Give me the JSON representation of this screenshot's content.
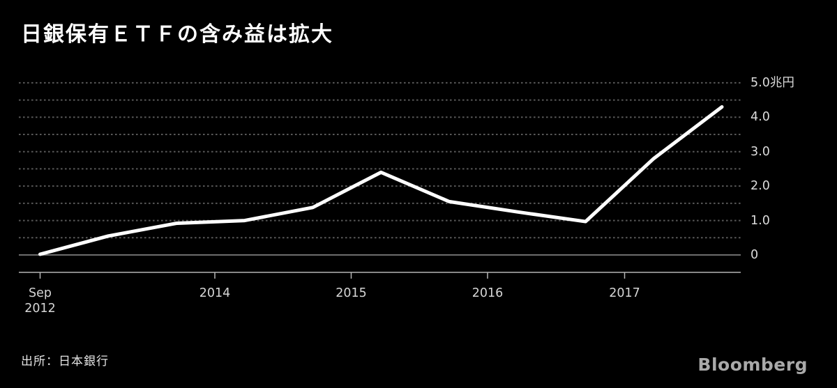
{
  "chart_data": {
    "type": "line",
    "title": "日銀保有ＥＴＦの含み益は拡大",
    "unit": "兆円",
    "x": [
      "Sep 2012",
      "Mar 2013",
      "Sep 2013",
      "Mar 2014",
      "Sep 2014",
      "Mar 2015",
      "Sep 2015",
      "Mar 2016",
      "Sep 2016",
      "Mar 2017",
      "Sep 2017"
    ],
    "values": [
      0.02,
      0.55,
      0.92,
      1.0,
      1.38,
      2.4,
      1.55,
      1.25,
      0.97,
      2.8,
      4.3
    ],
    "ylim": [
      -0.5,
      5.0
    ],
    "y_ticks": [
      {
        "value": 5.0,
        "label": "5.0兆円"
      },
      {
        "value": 4.0,
        "label": "4.0"
      },
      {
        "value": 3.0,
        "label": "3.0"
      },
      {
        "value": 2.0,
        "label": "2.0"
      },
      {
        "value": 1.0,
        "label": "1.0"
      },
      {
        "value": 0.0,
        "label": "0"
      }
    ],
    "x_axis_ticks": [
      {
        "label": "Sep\n2012"
      },
      {
        "label": "2014"
      },
      {
        "label": "2015"
      },
      {
        "label": "2016"
      },
      {
        "label": "2017"
      }
    ],
    "grid": "horizontal dotted every 0.5, solid zero line, legend none",
    "colors": {
      "background": "#000000",
      "line": "#ffffff",
      "grid_dotted": "#585858",
      "zero_line": "#6e6e6e",
      "axis": "#b5b5b5",
      "tick_label": "#d6d6d6"
    }
  },
  "source": {
    "label": "出所：日本銀行"
  },
  "branding": {
    "logo": "Bloomberg"
  }
}
